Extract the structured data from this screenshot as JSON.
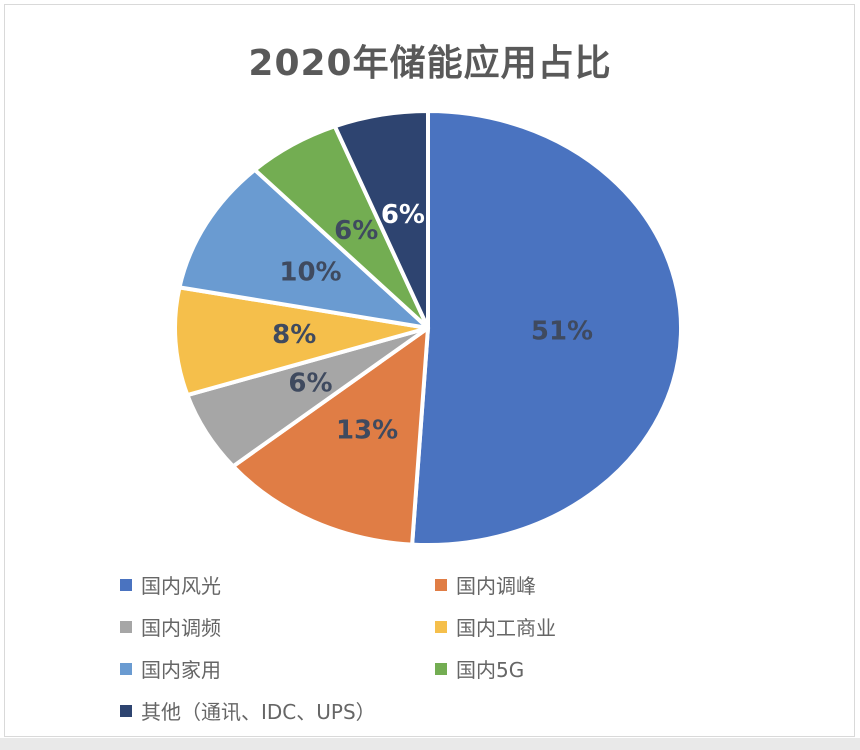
{
  "card": {
    "background": "#ffffff",
    "border_color": "#d9d9d9"
  },
  "chart_data": {
    "type": "pie",
    "title": "2020年储能应用占比",
    "title_color": "#595959",
    "start_angle_deg": 0,
    "direction": "clockwise",
    "data_label_format": "percent",
    "legend_position": "bottom",
    "legend_columns": 2,
    "slice_border_color": "#ffffff",
    "segments": [
      {
        "label": "国内风光",
        "value_pct": 51,
        "color": "#4a73c0",
        "label_text": "51%",
        "label_color": "#3f4a5f"
      },
      {
        "label": "国内调峰",
        "value_pct": 13,
        "color": "#e07d45",
        "label_text": "13%",
        "label_color": "#3f4a5f"
      },
      {
        "label": "国内调频",
        "value_pct": 6,
        "color": "#a6a6a6",
        "label_text": "6%",
        "label_color": "#3f4a5f"
      },
      {
        "label": "国内工商业",
        "value_pct": 8,
        "color": "#f5bf4b",
        "label_text": "8%",
        "label_color": "#3f4a5f"
      },
      {
        "label": "国内家用",
        "value_pct": 10,
        "color": "#6a9bd1",
        "label_text": "10%",
        "label_color": "#3f4a5f"
      },
      {
        "label": "国内5G",
        "value_pct": 6,
        "color": "#73ad52",
        "label_text": "6%",
        "label_color": "#3f4a5f"
      },
      {
        "label": "其他（通讯、IDC、UPS）",
        "value_pct": 6,
        "color": "#2e4470",
        "label_text": "6%",
        "label_color": "#ffffff"
      }
    ]
  }
}
